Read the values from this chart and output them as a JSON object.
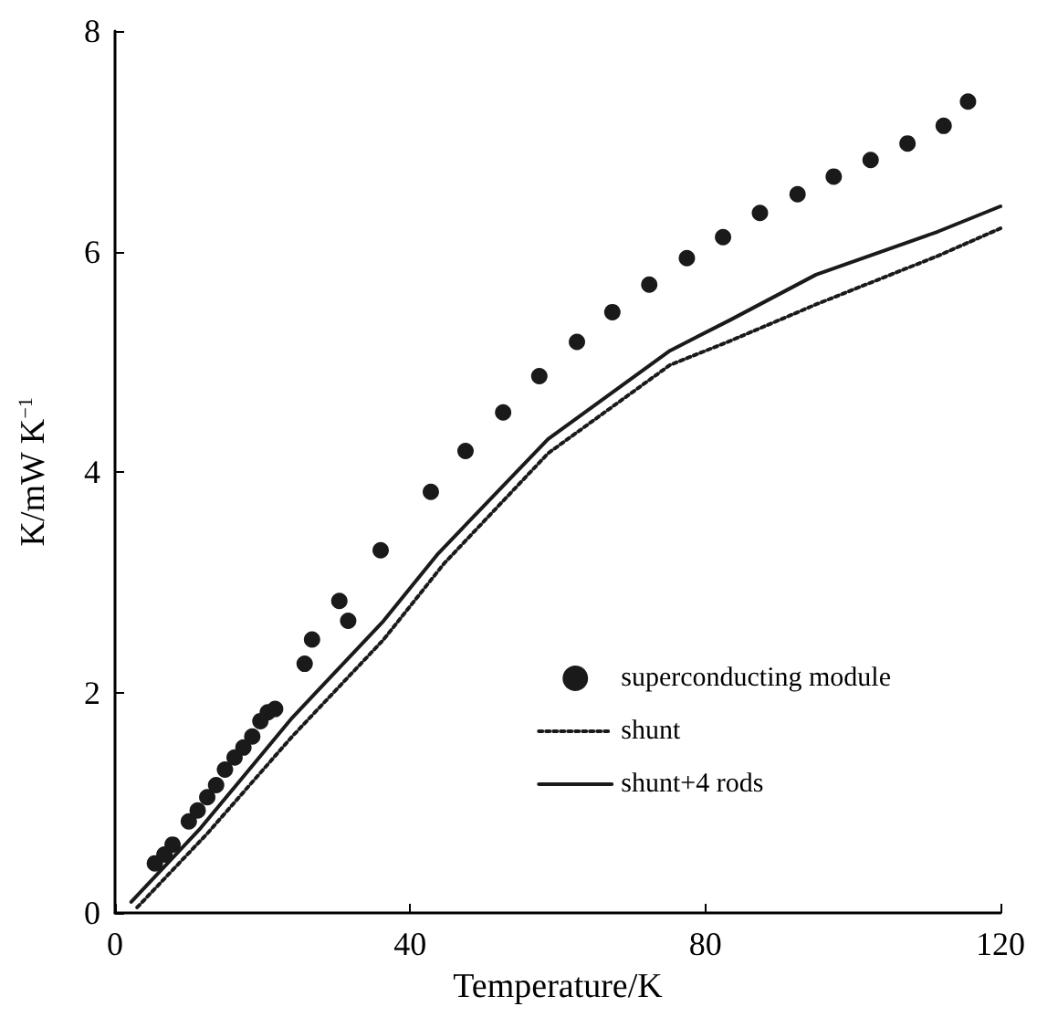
{
  "chart_data": {
    "type": "scatter",
    "xlabel": "Temperature/K",
    "ylabel": "K/mW K$^{−1}$",
    "xlim": [
      0,
      120
    ],
    "ylim": [
      0,
      8
    ],
    "xticks": [
      0,
      40,
      80,
      120
    ],
    "yticks": [
      0,
      2,
      4,
      6,
      8
    ],
    "grid": false,
    "legend": "bottom right",
    "series": [
      {
        "name": "superconducting module",
        "marker": "circle",
        "color": "#1a1a1a",
        "x": [
          5.4,
          6.7,
          7.8,
          10.0,
          11.2,
          12.5,
          13.7,
          14.9,
          16.2,
          17.4,
          18.6,
          19.7,
          20.7,
          21.7,
          25.7,
          26.7,
          30.4,
          31.6,
          36.0,
          42.8,
          47.5,
          52.6,
          57.5,
          62.6,
          67.4,
          72.4,
          77.5,
          82.4,
          87.4,
          92.5,
          97.4,
          102.4,
          107.4,
          112.3,
          115.6
        ],
        "values": [
          0.45,
          0.53,
          0.62,
          0.83,
          0.93,
          1.05,
          1.16,
          1.3,
          1.41,
          1.5,
          1.6,
          1.74,
          1.82,
          1.85,
          2.26,
          2.48,
          2.83,
          2.65,
          3.29,
          3.82,
          4.19,
          4.54,
          4.87,
          5.18,
          5.45,
          5.7,
          5.94,
          6.13,
          6.35,
          6.52,
          6.68,
          6.83,
          6.98,
          7.14,
          7.36
        ]
      },
      {
        "name": "shunt",
        "type": "line",
        "line_style": "dotted",
        "marker": "none",
        "color": "#1a1a1a",
        "x": [
          3,
          12.5,
          24,
          36.4,
          44.6,
          58.7,
          75.2,
          83.4,
          95,
          111.5,
          120
        ],
        "values": [
          0.05,
          0.72,
          1.6,
          2.48,
          3.17,
          4.17,
          4.97,
          5.19,
          5.52,
          5.96,
          6.21
        ]
      },
      {
        "name": "shunt+4 rods",
        "type": "line",
        "line_style": "solid",
        "marker": "none",
        "color": "#1a1a1a",
        "x": [
          2.2,
          11.6,
          24,
          36.4,
          43.8,
          58.7,
          75.2,
          83.4,
          95,
          111.5,
          120
        ],
        "values": [
          0.1,
          0.77,
          1.77,
          2.65,
          3.26,
          4.3,
          5.1,
          5.38,
          5.79,
          6.18,
          6.41
        ]
      }
    ]
  }
}
